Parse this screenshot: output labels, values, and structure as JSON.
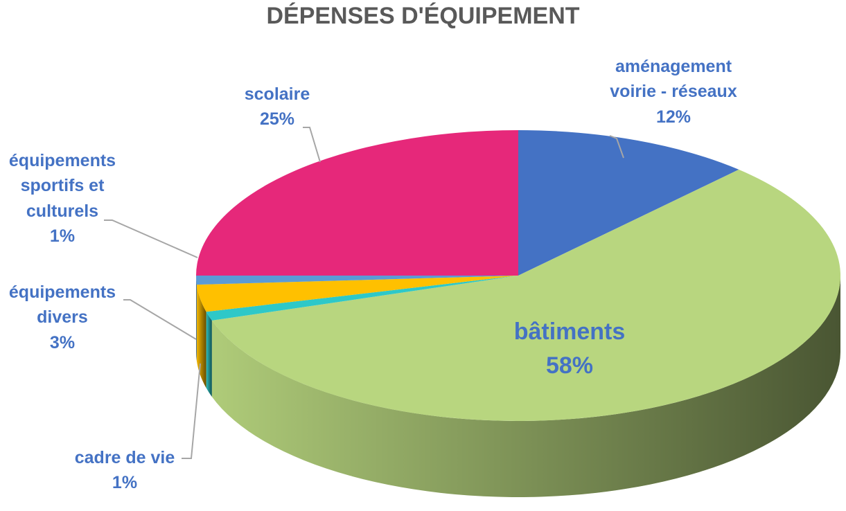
{
  "chart_data": {
    "type": "pie",
    "title": "DÉPENSES D'ÉQUIPEMENT",
    "categories": [
      "aménagement voirie - réseaux",
      "bâtiments",
      "cadre de vie",
      "équipements divers",
      "équipements sportifs et culturels",
      "scolaire"
    ],
    "values": [
      12,
      58,
      1,
      3,
      1,
      25
    ],
    "value_labels": [
      "12%",
      "58%",
      "1%",
      "3%",
      "1%",
      "25%"
    ],
    "colors": [
      "#4472c4",
      "#b8d67f",
      "#2ec8c8",
      "#ffc000",
      "#5b9bd5",
      "#e6287a"
    ],
    "label_color": "#4472c4"
  }
}
